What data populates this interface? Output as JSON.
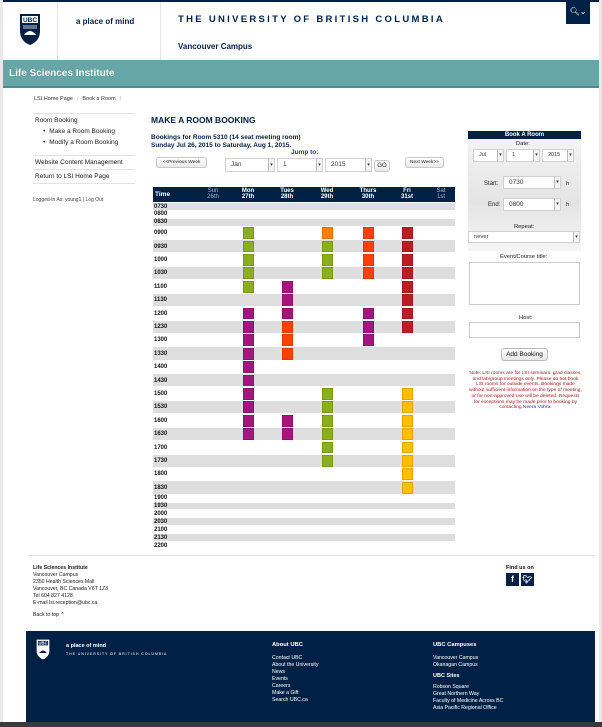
{
  "header": {
    "tagline": "a place of mind",
    "university": "THE UNIVERSITY OF BRITISH COLUMBIA",
    "campus": "Vancouver Campus",
    "search_icon": "search-icon",
    "crest_label": "UBC"
  },
  "site": {
    "title": "Life Sciences Institute"
  },
  "breadcrumb": {
    "items": [
      "LSI Home Page",
      "Book a Room"
    ],
    "separator": "/"
  },
  "sidebar": {
    "group_label": "Room Booking",
    "sub_items": [
      "Make a Room Booking",
      "Modify a Room Booking"
    ],
    "items": [
      "Website Content Management",
      "Return to LSI Home Page"
    ],
    "logged_in_prefix": "Logged-in As: ",
    "user": "young1",
    "logout": "Log Out",
    "logged_in_text": "Logged-in As: young1 | Log Out"
  },
  "main": {
    "title": "MAKE A ROOM BOOKING",
    "room_line": "Bookings for Room 5310 (14 seat meeting room)",
    "date_range": "Sunday Jul 26, 2015 to Saturday, Aug 1, 2015.",
    "jump_to_label": "Jump to:",
    "prev_week": "<<Previous Week",
    "next_week": "Next Week>>",
    "jump_month": "Jan",
    "jump_day": "1",
    "jump_year": "2015",
    "go": "GO"
  },
  "calendar": {
    "time_header": "Time",
    "days": [
      {
        "name": "Sun",
        "date": "26th",
        "weekend": true
      },
      {
        "name": "Mon",
        "date": "27th",
        "weekend": false
      },
      {
        "name": "Tues",
        "date": "28th",
        "weekend": false
      },
      {
        "name": "Wed",
        "date": "29th",
        "weekend": false
      },
      {
        "name": "Thurs",
        "date": "30th",
        "weekend": false
      },
      {
        "name": "Fri",
        "date": "31st",
        "weekend": false
      },
      {
        "name": "Sat",
        "date": "1st",
        "weekend": true
      }
    ],
    "times": [
      "0730",
      "0800",
      "0830",
      "0900",
      "0930",
      "1000",
      "1030",
      "1100",
      "1130",
      "1200",
      "1230",
      "1300",
      "1330",
      "1400",
      "1430",
      "1500",
      "1530",
      "1600",
      "1630",
      "1700",
      "1730",
      "1800",
      "1830",
      "1900",
      "1930",
      "2000",
      "2030",
      "2100",
      "2130",
      "2200"
    ],
    "colors": {
      "green": "#8aaf1e",
      "orange": "#ff8000",
      "orangered": "#ff4000",
      "red": "#b81e22",
      "purple": "#a6147e",
      "yellow": "#ffbe00"
    },
    "bookings": [
      {
        "day": "Mon",
        "start": "0900",
        "end": "1100",
        "color": "green"
      },
      {
        "day": "Mon",
        "start": "1200",
        "end": "1630",
        "color": "purple"
      },
      {
        "day": "Tues",
        "start": "1100",
        "end": "1200",
        "color": "purple"
      },
      {
        "day": "Tues",
        "start": "1230",
        "end": "1330",
        "color": "orangered"
      },
      {
        "day": "Tues",
        "start": "1600",
        "end": "1630",
        "color": "purple"
      },
      {
        "day": "Wed",
        "start": "0900",
        "end": "0900",
        "color": "orange"
      },
      {
        "day": "Wed",
        "start": "0930",
        "end": "1030",
        "color": "green"
      },
      {
        "day": "Wed",
        "start": "1500",
        "end": "1730",
        "color": "green"
      },
      {
        "day": "Thurs",
        "start": "0900",
        "end": "1030",
        "color": "orangered"
      },
      {
        "day": "Thurs",
        "start": "1200",
        "end": "1300",
        "color": "purple"
      },
      {
        "day": "Fri",
        "start": "0900",
        "end": "1230",
        "color": "red"
      },
      {
        "day": "Fri",
        "start": "1500",
        "end": "1830",
        "color": "yellow"
      }
    ]
  },
  "booking_form": {
    "title": "Book A Room",
    "date_label": "Date:",
    "month": "Jul",
    "day": "1",
    "year": "2015",
    "start_label": "Start:",
    "start_value": "0730",
    "end_label": "End:",
    "end_value": "0800",
    "hour_suffix": "h",
    "repeat_label": "Repeat:",
    "repeat_value": "never",
    "event_title_label": "Event/Course title:",
    "event_title_value": "",
    "host_label": "Host:",
    "host_value": "",
    "submit": "Add Booking",
    "note": "Note: LSI rooms are for LSI seminars, grad classes, and lab/group meetings only. Please do not book LSI rooms for outside events. Bookings made without sufficient information on the type of meeting, or for non-approved use will be deleted. Requests for exceptions may be made prior to booking by contacting ",
    "note_contact": "Neera Vohra",
    "note_end": "."
  },
  "footer_info": {
    "org": "Life Sciences Institute",
    "lines": [
      "Vancouver Campus",
      "2350 Health Sciences Mall",
      "Vancouver, BC Canada V6T 1Z3",
      "Tel 604 827 4128",
      "E-mail lsi.reception@ubc.ca"
    ],
    "back_to_top": "Back to top",
    "find_us": "Find us on",
    "facebook": "f",
    "twitter": "t"
  },
  "footer": {
    "tagline": "a place of mind",
    "university": "THE UNIVERSITY OF BRITISH COLUMBIA",
    "about_heading": "About UBC",
    "about_links": [
      "Contact UBC",
      "About the University",
      "News",
      "Events",
      "Careers",
      "Make a Gift",
      "Search UBC.ca"
    ],
    "campuses_heading": "UBC Campuses",
    "campus_links": [
      "Vancouver Campus",
      "Okanagan Campus"
    ],
    "sites_heading": "UBC Sites",
    "site_links": [
      "Robson Square",
      "Great Northern Way",
      "Faculty of Medicine Across BC",
      "Asia Pacific Regional Office"
    ]
  },
  "theme": {
    "navy": "#002145",
    "teal": "#66a6a6",
    "row_grey": "#dedede"
  }
}
